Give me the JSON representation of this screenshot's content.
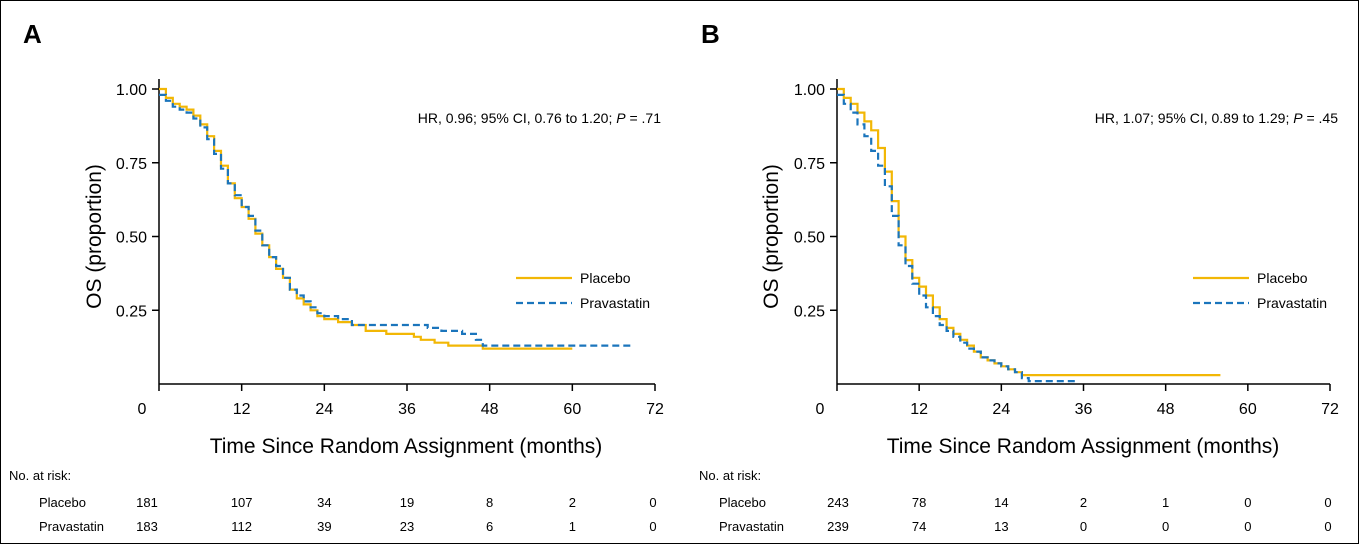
{
  "colors": {
    "placebo": "#F2B705",
    "pravastatin": "#1B75BC",
    "axis": "#000000"
  },
  "chart_data": [
    {
      "type": "line",
      "panel_label": "A",
      "ylabel": "OS (proportion)",
      "xlabel": "Time Since Random Assignment (months)",
      "xlim": [
        0,
        72
      ],
      "ylim": [
        0,
        1.0
      ],
      "x_ticks": [
        0,
        12,
        24,
        36,
        48,
        60,
        72
      ],
      "y_ticks": [
        0.25,
        0.5,
        0.75,
        1.0
      ],
      "y_tick_labels": [
        "0.25",
        "0.50",
        "0.75",
        "1.00"
      ],
      "grid": false,
      "legend_position": "right",
      "annotation": {
        "text": "HR, 0.96; 95% CI, 0.76 to 1.20; ",
        "p_label": "P",
        "p_value": " = .71"
      },
      "series": [
        {
          "name": "Placebo",
          "color": "#F2B705",
          "dashed": false,
          "x": [
            0,
            1,
            2,
            3,
            4,
            5,
            6,
            7,
            8,
            9,
            10,
            11,
            12,
            13,
            14,
            15,
            16,
            17,
            18,
            19,
            20,
            21,
            22,
            23,
            24,
            26,
            28,
            30,
            33,
            36,
            37,
            38,
            40,
            42,
            44,
            47,
            50,
            53,
            56,
            60
          ],
          "y": [
            1.0,
            0.97,
            0.95,
            0.94,
            0.93,
            0.91,
            0.88,
            0.84,
            0.79,
            0.74,
            0.68,
            0.63,
            0.6,
            0.56,
            0.51,
            0.47,
            0.43,
            0.39,
            0.36,
            0.32,
            0.29,
            0.27,
            0.25,
            0.23,
            0.22,
            0.21,
            0.2,
            0.18,
            0.17,
            0.17,
            0.16,
            0.15,
            0.14,
            0.13,
            0.13,
            0.12,
            0.12,
            0.12,
            0.12,
            0.12
          ]
        },
        {
          "name": "Pravastatin",
          "color": "#1B75BC",
          "dashed": true,
          "x": [
            0,
            1,
            2,
            3,
            4,
            5,
            6,
            7,
            8,
            9,
            10,
            11,
            12,
            13,
            14,
            15,
            16,
            17,
            18,
            19,
            20,
            21,
            22,
            23,
            24,
            26,
            28,
            30,
            33,
            36,
            39,
            41,
            43,
            44,
            46,
            47,
            50,
            55,
            60,
            65,
            69
          ],
          "y": [
            0.98,
            0.96,
            0.94,
            0.93,
            0.92,
            0.9,
            0.87,
            0.83,
            0.78,
            0.73,
            0.68,
            0.64,
            0.6,
            0.57,
            0.52,
            0.47,
            0.43,
            0.4,
            0.36,
            0.32,
            0.3,
            0.28,
            0.26,
            0.24,
            0.23,
            0.22,
            0.2,
            0.2,
            0.2,
            0.2,
            0.19,
            0.18,
            0.18,
            0.17,
            0.15,
            0.13,
            0.13,
            0.13,
            0.13,
            0.13,
            0.13
          ]
        }
      ],
      "risk_table": {
        "title": "No. at risk:",
        "times": [
          0,
          12,
          24,
          36,
          48,
          60,
          72
        ],
        "rows": [
          {
            "label": "Placebo",
            "values": [
              "181",
              "107",
              "34",
              "19",
              "8",
              "2",
              "0"
            ]
          },
          {
            "label": "Pravastatin",
            "values": [
              "183",
              "112",
              "39",
              "23",
              "6",
              "1",
              "0"
            ]
          }
        ]
      }
    },
    {
      "type": "line",
      "panel_label": "B",
      "ylabel": "OS (proportion)",
      "xlabel": "Time Since Random Assignment (months)",
      "xlim": [
        0,
        72
      ],
      "ylim": [
        0,
        1.0
      ],
      "x_ticks": [
        0,
        12,
        24,
        36,
        48,
        60,
        72
      ],
      "y_ticks": [
        0.25,
        0.5,
        0.75,
        1.0
      ],
      "y_tick_labels": [
        "0.25",
        "0.50",
        "0.75",
        "1.00"
      ],
      "grid": false,
      "legend_position": "right",
      "annotation": {
        "text": "HR, 1.07; 95% CI, 0.89 to 1.29; ",
        "p_label": "P",
        "p_value": " = .45"
      },
      "series": [
        {
          "name": "Placebo",
          "color": "#F2B705",
          "dashed": false,
          "x": [
            0,
            1,
            2,
            3,
            4,
            5,
            6,
            7,
            8,
            9,
            10,
            11,
            12,
            13,
            14,
            15,
            16,
            17,
            18,
            19,
            20,
            21,
            22,
            23,
            24,
            25,
            26,
            27,
            30,
            35,
            40,
            45,
            50,
            56
          ],
          "y": [
            1.0,
            0.97,
            0.95,
            0.92,
            0.89,
            0.86,
            0.8,
            0.72,
            0.62,
            0.5,
            0.42,
            0.36,
            0.33,
            0.3,
            0.26,
            0.22,
            0.19,
            0.17,
            0.15,
            0.13,
            0.11,
            0.09,
            0.08,
            0.07,
            0.06,
            0.05,
            0.04,
            0.03,
            0.03,
            0.03,
            0.03,
            0.03,
            0.03,
            0.03
          ]
        },
        {
          "name": "Pravastatin",
          "color": "#1B75BC",
          "dashed": true,
          "x": [
            0,
            1,
            2,
            3,
            4,
            5,
            6,
            7,
            8,
            9,
            10,
            11,
            12,
            13,
            14,
            15,
            16,
            17,
            18,
            19,
            20,
            21,
            22,
            23,
            24,
            25,
            26,
            27,
            28,
            30,
            32,
            35
          ],
          "y": [
            0.98,
            0.95,
            0.92,
            0.88,
            0.84,
            0.79,
            0.74,
            0.67,
            0.57,
            0.47,
            0.4,
            0.34,
            0.3,
            0.26,
            0.23,
            0.2,
            0.18,
            0.16,
            0.14,
            0.12,
            0.11,
            0.09,
            0.08,
            0.07,
            0.06,
            0.05,
            0.04,
            0.02,
            0.01,
            0.01,
            0.01,
            0.01
          ]
        }
      ],
      "risk_table": {
        "title": "No. at risk:",
        "times": [
          0,
          12,
          24,
          36,
          48,
          60,
          72
        ],
        "rows": [
          {
            "label": "Placebo",
            "values": [
              "243",
              "78",
              "14",
              "2",
              "1",
              "0",
              "0"
            ]
          },
          {
            "label": "Pravastatin",
            "values": [
              "239",
              "74",
              "13",
              "0",
              "0",
              "0",
              "0"
            ]
          }
        ]
      }
    }
  ]
}
